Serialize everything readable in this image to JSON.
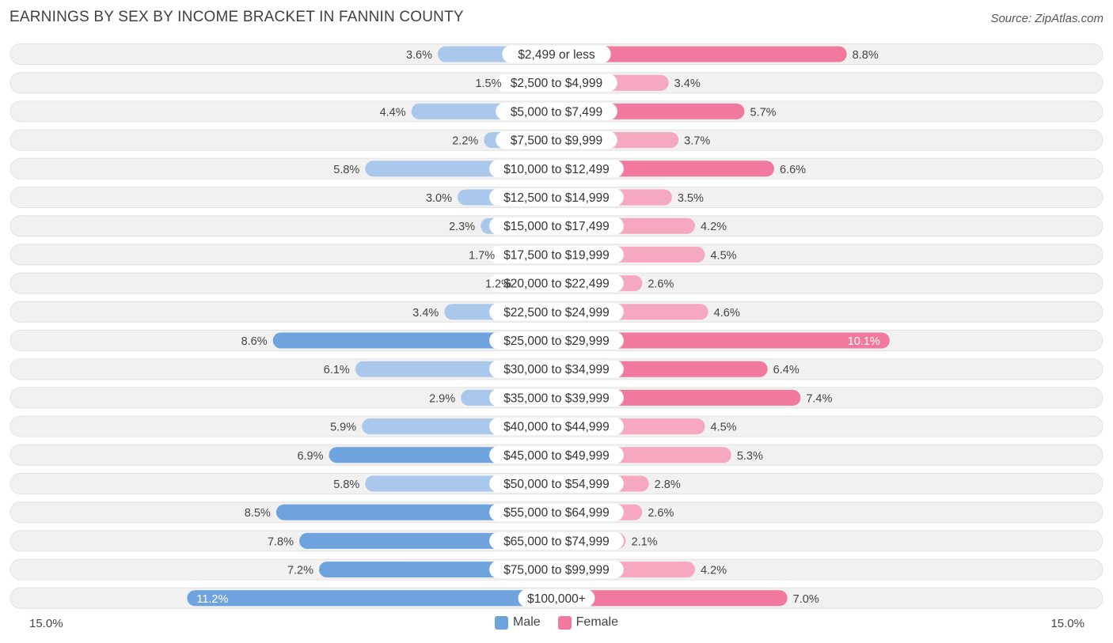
{
  "title": "EARNINGS BY SEX BY INCOME BRACKET IN FANNIN COUNTY",
  "source": "Source: ZipAtlas.com",
  "axis": {
    "left_label": "15.0%",
    "right_label": "15.0%"
  },
  "legend": {
    "male_label": "Male",
    "female_label": "Female"
  },
  "colors": {
    "male": "#6fa3dd",
    "male_light": "#a9c8ec",
    "female": "#f0799d",
    "female_light": "#f6a8c0",
    "track": "#f1f1f1"
  },
  "chart_data": {
    "type": "bar",
    "orientation": "horizontal-diverging",
    "title": "EARNINGS BY SEX BY INCOME BRACKET IN FANNIN COUNTY",
    "xlim": [
      -15.0,
      15.0
    ],
    "categories": [
      "$2,499 or less",
      "$2,500 to $4,999",
      "$5,000 to $7,499",
      "$7,500 to $9,999",
      "$10,000 to $12,499",
      "$12,500 to $14,999",
      "$15,000 to $17,499",
      "$17,500 to $19,999",
      "$20,000 to $22,499",
      "$22,500 to $24,999",
      "$25,000 to $29,999",
      "$30,000 to $34,999",
      "$35,000 to $39,999",
      "$40,000 to $44,999",
      "$45,000 to $49,999",
      "$50,000 to $54,999",
      "$55,000 to $64,999",
      "$65,000 to $74,999",
      "$75,000 to $99,999",
      "$100,000+"
    ],
    "series": [
      {
        "name": "Male",
        "values": [
          3.6,
          1.5,
          4.4,
          2.2,
          5.8,
          3.0,
          2.3,
          1.7,
          1.2,
          3.4,
          8.6,
          6.1,
          2.9,
          5.9,
          6.9,
          5.8,
          8.5,
          7.8,
          7.2,
          11.2
        ],
        "labels": [
          "3.6%",
          "1.5%",
          "4.4%",
          "2.2%",
          "5.8%",
          "3.0%",
          "2.3%",
          "1.7%",
          "1.2%",
          "3.4%",
          "8.6%",
          "6.1%",
          "2.9%",
          "5.9%",
          "6.9%",
          "5.8%",
          "8.5%",
          "7.8%",
          "7.2%",
          "11.2%"
        ]
      },
      {
        "name": "Female",
        "values": [
          8.8,
          3.4,
          5.7,
          3.7,
          6.6,
          3.5,
          4.2,
          4.5,
          2.6,
          4.6,
          10.1,
          6.4,
          7.4,
          4.5,
          5.3,
          2.8,
          2.6,
          2.1,
          4.2,
          7.0
        ],
        "labels": [
          "8.8%",
          "3.4%",
          "5.7%",
          "3.7%",
          "6.6%",
          "3.5%",
          "4.2%",
          "4.5%",
          "2.6%",
          "4.6%",
          "10.1%",
          "6.4%",
          "7.4%",
          "4.5%",
          "5.3%",
          "2.8%",
          "2.6%",
          "2.1%",
          "4.2%",
          "7.0%"
        ]
      }
    ],
    "legend_position": "bottom-center"
  }
}
